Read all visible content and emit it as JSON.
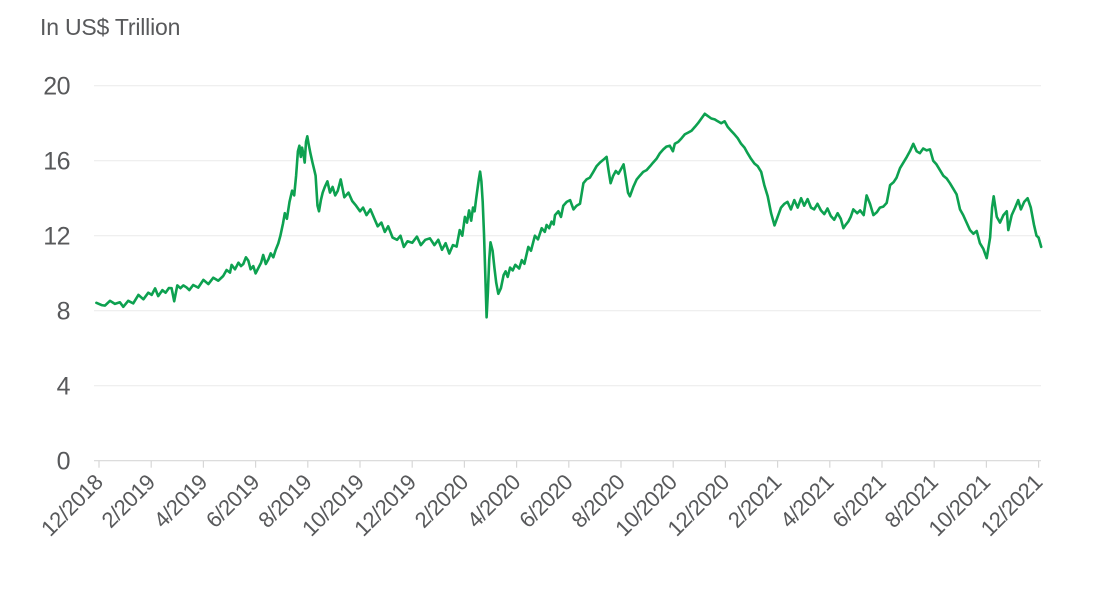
{
  "page": {
    "background": "#ffffff"
  },
  "chart_data": {
    "type": "line",
    "title": "In US$ Trillion",
    "xlabel": "",
    "ylabel": "",
    "ylim": [
      0,
      20
    ],
    "y_ticks": [
      0,
      4,
      8,
      12,
      16,
      20
    ],
    "y_tick_labels": [
      "0",
      "4",
      "8",
      "12",
      "16",
      "20"
    ],
    "x_tick_labels": [
      "12/2018",
      "2/2019",
      "4/2019",
      "6/2019",
      "8/2019",
      "10/2019",
      "12/2019",
      "2/2020",
      "4/2020",
      "6/2020",
      "8/2020",
      "10/2020",
      "12/2020",
      "2/2021",
      "4/2021",
      "6/2021",
      "8/2021",
      "10/2021",
      "12/2021"
    ],
    "grid": "horizontal",
    "legend": "none",
    "points_format": "[months_after_12_2018, value_us_trillion]",
    "points": [
      [
        -0.1,
        8.42
      ],
      [
        0.1,
        8.3
      ],
      [
        0.23,
        8.27
      ],
      [
        0.42,
        8.53
      ],
      [
        0.61,
        8.36
      ],
      [
        0.8,
        8.45
      ],
      [
        0.93,
        8.21
      ],
      [
        1.12,
        8.53
      ],
      [
        1.31,
        8.39
      ],
      [
        1.51,
        8.84
      ],
      [
        1.7,
        8.61
      ],
      [
        1.89,
        8.96
      ],
      [
        2.02,
        8.84
      ],
      [
        2.15,
        9.19
      ],
      [
        2.27,
        8.78
      ],
      [
        2.43,
        9.1
      ],
      [
        2.55,
        8.96
      ],
      [
        2.68,
        9.21
      ],
      [
        2.78,
        9.2
      ],
      [
        2.88,
        8.5
      ],
      [
        3.0,
        9.35
      ],
      [
        3.12,
        9.2
      ],
      [
        3.23,
        9.35
      ],
      [
        3.35,
        9.25
      ],
      [
        3.46,
        9.1
      ],
      [
        3.61,
        9.37
      ],
      [
        3.8,
        9.23
      ],
      [
        4.0,
        9.64
      ],
      [
        4.19,
        9.42
      ],
      [
        4.38,
        9.76
      ],
      [
        4.57,
        9.6
      ],
      [
        4.76,
        9.85
      ],
      [
        4.89,
        10.17
      ],
      [
        5.02,
        10.03
      ],
      [
        5.08,
        10.44
      ],
      [
        5.21,
        10.21
      ],
      [
        5.34,
        10.56
      ],
      [
        5.44,
        10.38
      ],
      [
        5.53,
        10.49
      ],
      [
        5.63,
        10.85
      ],
      [
        5.72,
        10.67
      ],
      [
        5.81,
        10.21
      ],
      [
        5.91,
        10.38
      ],
      [
        6.0,
        9.99
      ],
      [
        6.1,
        10.26
      ],
      [
        6.21,
        10.56
      ],
      [
        6.29,
        10.97
      ],
      [
        6.39,
        10.49
      ],
      [
        6.49,
        10.74
      ],
      [
        6.58,
        11.06
      ],
      [
        6.68,
        10.85
      ],
      [
        6.77,
        11.24
      ],
      [
        6.87,
        11.59
      ],
      [
        6.95,
        12.0
      ],
      [
        7.05,
        12.65
      ],
      [
        7.12,
        13.2
      ],
      [
        7.2,
        12.9
      ],
      [
        7.3,
        13.8
      ],
      [
        7.4,
        14.4
      ],
      [
        7.48,
        14.15
      ],
      [
        7.55,
        15.2
      ],
      [
        7.62,
        16.5
      ],
      [
        7.68,
        16.8
      ],
      [
        7.73,
        16.2
      ],
      [
        7.78,
        16.7
      ],
      [
        7.83,
        16.35
      ],
      [
        7.88,
        15.9
      ],
      [
        7.93,
        17.0
      ],
      [
        7.98,
        17.3
      ],
      [
        8.03,
        16.9
      ],
      [
        8.1,
        16.4
      ],
      [
        8.18,
        15.9
      ],
      [
        8.25,
        15.5
      ],
      [
        8.3,
        15.2
      ],
      [
        8.37,
        13.6
      ],
      [
        8.43,
        13.3
      ],
      [
        8.5,
        13.9
      ],
      [
        8.57,
        14.3
      ],
      [
        8.65,
        14.6
      ],
      [
        8.75,
        14.9
      ],
      [
        8.85,
        14.3
      ],
      [
        8.95,
        14.6
      ],
      [
        9.05,
        14.15
      ],
      [
        9.15,
        14.4
      ],
      [
        9.26,
        15.0
      ],
      [
        9.4,
        14.05
      ],
      [
        9.56,
        14.3
      ],
      [
        9.7,
        13.85
      ],
      [
        9.85,
        13.6
      ],
      [
        10.0,
        13.3
      ],
      [
        10.12,
        13.5
      ],
      [
        10.25,
        13.1
      ],
      [
        10.4,
        13.4
      ],
      [
        10.55,
        12.9
      ],
      [
        10.68,
        12.5
      ],
      [
        10.82,
        12.7
      ],
      [
        10.95,
        12.2
      ],
      [
        11.08,
        12.5
      ],
      [
        11.25,
        11.9
      ],
      [
        11.42,
        11.78
      ],
      [
        11.55,
        12.0
      ],
      [
        11.68,
        11.4
      ],
      [
        11.82,
        11.7
      ],
      [
        12.0,
        11.62
      ],
      [
        12.18,
        11.95
      ],
      [
        12.33,
        11.5
      ],
      [
        12.5,
        11.78
      ],
      [
        12.68,
        11.86
      ],
      [
        12.85,
        11.5
      ],
      [
        13.0,
        11.78
      ],
      [
        13.14,
        11.25
      ],
      [
        13.28,
        11.6
      ],
      [
        13.42,
        11.05
      ],
      [
        13.56,
        11.5
      ],
      [
        13.7,
        11.42
      ],
      [
        13.82,
        12.3
      ],
      [
        13.92,
        12.0
      ],
      [
        14.02,
        13.0
      ],
      [
        14.1,
        12.7
      ],
      [
        14.18,
        13.35
      ],
      [
        14.26,
        12.8
      ],
      [
        14.33,
        13.5
      ],
      [
        14.39,
        13.3
      ],
      [
        14.45,
        13.95
      ],
      [
        14.5,
        14.5
      ],
      [
        14.55,
        15.0
      ],
      [
        14.6,
        15.42
      ],
      [
        14.65,
        14.9
      ],
      [
        14.7,
        13.8
      ],
      [
        14.75,
        12.1
      ],
      [
        14.8,
        9.9
      ],
      [
        14.85,
        7.65
      ],
      [
        14.9,
        9.0
      ],
      [
        14.95,
        10.7
      ],
      [
        15.0,
        11.65
      ],
      [
        15.08,
        11.2
      ],
      [
        15.15,
        10.3
      ],
      [
        15.22,
        9.5
      ],
      [
        15.3,
        8.9
      ],
      [
        15.4,
        9.2
      ],
      [
        15.5,
        9.9
      ],
      [
        15.58,
        10.1
      ],
      [
        15.66,
        9.8
      ],
      [
        15.75,
        10.3
      ],
      [
        15.85,
        10.15
      ],
      [
        15.95,
        10.45
      ],
      [
        16.1,
        10.25
      ],
      [
        16.2,
        10.7
      ],
      [
        16.3,
        10.5
      ],
      [
        16.45,
        11.4
      ],
      [
        16.55,
        11.2
      ],
      [
        16.7,
        12.0
      ],
      [
        16.82,
        11.8
      ],
      [
        16.96,
        12.4
      ],
      [
        17.08,
        12.2
      ],
      [
        17.15,
        12.57
      ],
      [
        17.25,
        12.4
      ],
      [
        17.34,
        12.75
      ],
      [
        17.42,
        12.6
      ],
      [
        17.47,
        13.1
      ],
      [
        17.6,
        13.3
      ],
      [
        17.7,
        13.0
      ],
      [
        17.79,
        13.6
      ],
      [
        17.92,
        13.8
      ],
      [
        18.05,
        13.9
      ],
      [
        18.18,
        13.4
      ],
      [
        18.3,
        13.6
      ],
      [
        18.43,
        13.7
      ],
      [
        18.56,
        14.8
      ],
      [
        18.68,
        15.0
      ],
      [
        18.81,
        15.1
      ],
      [
        18.94,
        15.4
      ],
      [
        19.06,
        15.7
      ],
      [
        19.19,
        15.9
      ],
      [
        19.32,
        16.05
      ],
      [
        19.45,
        16.2
      ],
      [
        19.52,
        15.5
      ],
      [
        19.6,
        14.8
      ],
      [
        19.7,
        15.2
      ],
      [
        19.8,
        15.45
      ],
      [
        19.9,
        15.3
      ],
      [
        20.0,
        15.55
      ],
      [
        20.1,
        15.8
      ],
      [
        20.18,
        15.1
      ],
      [
        20.27,
        14.3
      ],
      [
        20.34,
        14.1
      ],
      [
        20.47,
        14.6
      ],
      [
        20.6,
        15.0
      ],
      [
        20.72,
        15.2
      ],
      [
        20.85,
        15.4
      ],
      [
        20.98,
        15.5
      ],
      [
        21.11,
        15.7
      ],
      [
        21.23,
        15.9
      ],
      [
        21.36,
        16.1
      ],
      [
        21.49,
        16.4
      ],
      [
        21.62,
        16.6
      ],
      [
        21.74,
        16.75
      ],
      [
        21.87,
        16.8
      ],
      [
        21.99,
        16.5
      ],
      [
        22.06,
        16.9
      ],
      [
        22.19,
        17.0
      ],
      [
        22.32,
        17.2
      ],
      [
        22.44,
        17.4
      ],
      [
        22.57,
        17.5
      ],
      [
        22.7,
        17.6
      ],
      [
        22.83,
        17.8
      ],
      [
        22.95,
        18.0
      ],
      [
        23.08,
        18.25
      ],
      [
        23.21,
        18.5
      ],
      [
        23.33,
        18.38
      ],
      [
        23.46,
        18.25
      ],
      [
        23.59,
        18.2
      ],
      [
        23.71,
        18.1
      ],
      [
        23.84,
        18.0
      ],
      [
        23.97,
        18.1
      ],
      [
        24.09,
        17.8
      ],
      [
        24.22,
        17.6
      ],
      [
        24.35,
        17.4
      ],
      [
        24.47,
        17.2
      ],
      [
        24.6,
        16.9
      ],
      [
        24.73,
        16.7
      ],
      [
        24.85,
        16.4
      ],
      [
        24.98,
        16.1
      ],
      [
        25.11,
        15.85
      ],
      [
        25.24,
        15.7
      ],
      [
        25.37,
        15.4
      ],
      [
        25.49,
        14.7
      ],
      [
        25.62,
        14.1
      ],
      [
        25.75,
        13.2
      ],
      [
        25.88,
        12.55
      ],
      [
        26.0,
        13.0
      ],
      [
        26.13,
        13.5
      ],
      [
        26.26,
        13.7
      ],
      [
        26.38,
        13.8
      ],
      [
        26.51,
        13.4
      ],
      [
        26.64,
        13.9
      ],
      [
        26.77,
        13.5
      ],
      [
        26.9,
        14.0
      ],
      [
        27.02,
        13.6
      ],
      [
        27.15,
        13.95
      ],
      [
        27.28,
        13.5
      ],
      [
        27.4,
        13.4
      ],
      [
        27.53,
        13.7
      ],
      [
        27.66,
        13.35
      ],
      [
        27.79,
        13.15
      ],
      [
        27.91,
        13.45
      ],
      [
        28.04,
        13.05
      ],
      [
        28.17,
        12.85
      ],
      [
        28.3,
        13.2
      ],
      [
        28.42,
        12.9
      ],
      [
        28.52,
        12.4
      ],
      [
        28.62,
        12.6
      ],
      [
        28.71,
        12.75
      ],
      [
        28.8,
        13.0
      ],
      [
        28.9,
        13.4
      ],
      [
        29.05,
        13.2
      ],
      [
        29.16,
        13.35
      ],
      [
        29.3,
        13.1
      ],
      [
        29.41,
        14.15
      ],
      [
        29.54,
        13.7
      ],
      [
        29.67,
        13.1
      ],
      [
        29.8,
        13.25
      ],
      [
        29.92,
        13.5
      ],
      [
        30.05,
        13.55
      ],
      [
        30.18,
        13.75
      ],
      [
        30.31,
        14.7
      ],
      [
        30.44,
        14.85
      ],
      [
        30.56,
        15.1
      ],
      [
        30.69,
        15.6
      ],
      [
        30.82,
        15.9
      ],
      [
        30.95,
        16.2
      ],
      [
        31.07,
        16.5
      ],
      [
        31.2,
        16.9
      ],
      [
        31.33,
        16.5
      ],
      [
        31.45,
        16.4
      ],
      [
        31.58,
        16.65
      ],
      [
        31.71,
        16.55
      ],
      [
        31.84,
        16.6
      ],
      [
        31.96,
        16.0
      ],
      [
        32.09,
        15.8
      ],
      [
        32.22,
        15.5
      ],
      [
        32.35,
        15.2
      ],
      [
        32.48,
        15.05
      ],
      [
        32.6,
        14.8
      ],
      [
        32.73,
        14.5
      ],
      [
        32.86,
        14.2
      ],
      [
        32.99,
        13.4
      ],
      [
        33.11,
        13.1
      ],
      [
        33.24,
        12.7
      ],
      [
        33.37,
        12.3
      ],
      [
        33.5,
        12.1
      ],
      [
        33.63,
        12.25
      ],
      [
        33.75,
        11.6
      ],
      [
        33.88,
        11.3
      ],
      [
        34.01,
        10.8
      ],
      [
        34.14,
        11.9
      ],
      [
        34.22,
        13.5
      ],
      [
        34.28,
        14.1
      ],
      [
        34.4,
        13.0
      ],
      [
        34.52,
        12.7
      ],
      [
        34.65,
        13.1
      ],
      [
        34.78,
        13.3
      ],
      [
        34.84,
        12.3
      ],
      [
        34.97,
        13.1
      ],
      [
        35.1,
        13.5
      ],
      [
        35.22,
        13.9
      ],
      [
        35.32,
        13.4
      ],
      [
        35.45,
        13.8
      ],
      [
        35.58,
        14.0
      ],
      [
        35.7,
        13.5
      ],
      [
        35.82,
        12.6
      ],
      [
        35.92,
        12.0
      ],
      [
        36.0,
        11.9
      ],
      [
        36.1,
        11.4
      ]
    ]
  },
  "colors": {
    "line": "#0da150",
    "text": "#58595b",
    "grid": "#eaeaea",
    "axis": "#d7d7d7",
    "background": "#ffffff"
  }
}
